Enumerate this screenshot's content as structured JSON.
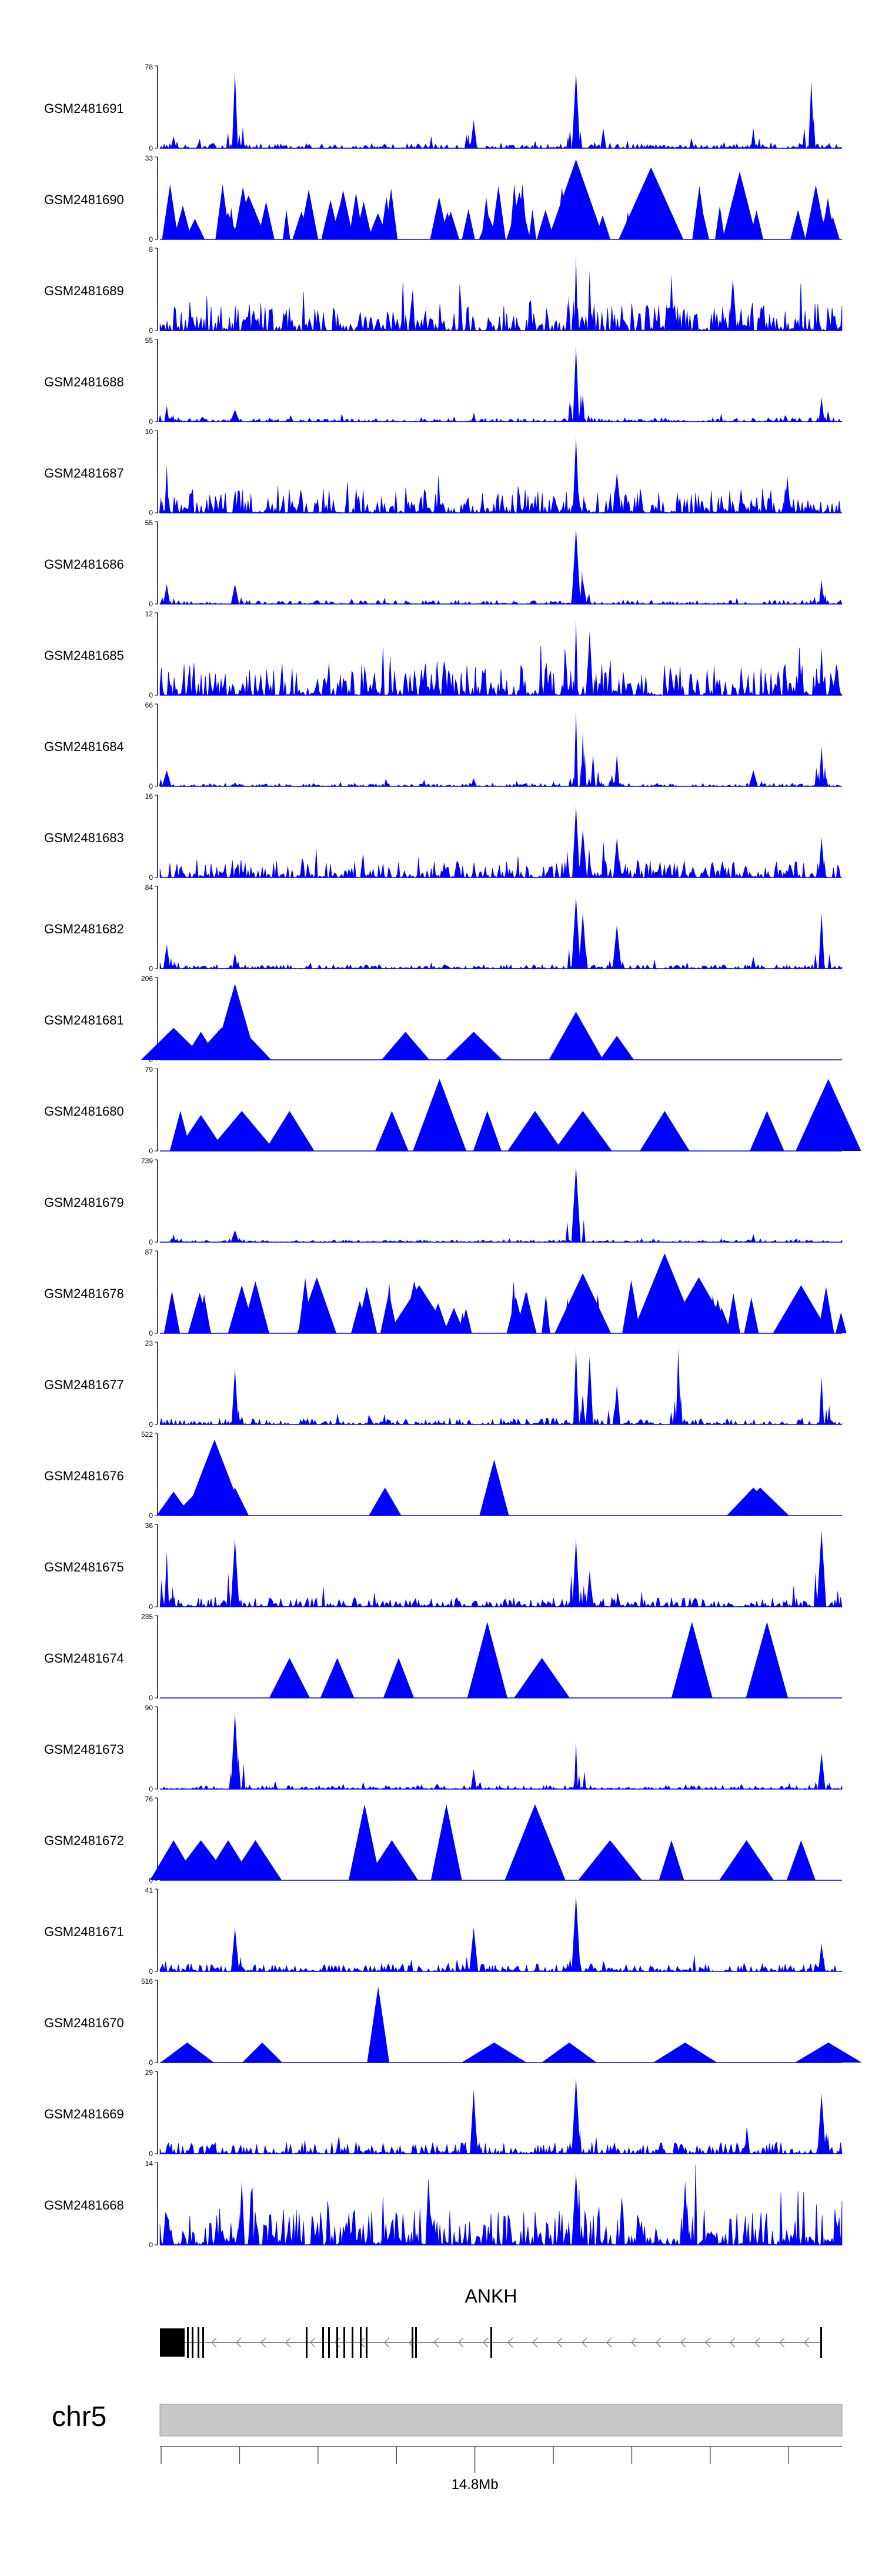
{
  "chart_data": {
    "type": "area",
    "title": "",
    "tracks": [
      {
        "name": "GSM2481691",
        "ymax": "78",
        "pattern": "spiky",
        "peaks": [
          [
            0.02,
            0.15
          ],
          [
            0.11,
            0.95
          ],
          [
            0.46,
            0.35
          ],
          [
            0.61,
            0.95
          ],
          [
            0.65,
            0.25
          ],
          [
            0.87,
            0.25
          ],
          [
            0.955,
            0.85
          ]
        ],
        "noise": 0.06
      },
      {
        "name": "GSM2481690",
        "ymax": "33",
        "pattern": "triangles",
        "peaks": [
          [
            0.13,
            0.55
          ],
          [
            0.61,
            1.0
          ],
          [
            0.72,
            0.9
          ],
          [
            0.85,
            0.85
          ]
        ],
        "noise": 0.45
      },
      {
        "name": "GSM2481689",
        "ymax": "8",
        "pattern": "spiky",
        "peaks": [
          [
            0.61,
            0.95
          ],
          [
            0.63,
            0.75
          ],
          [
            0.75,
            0.7
          ],
          [
            0.84,
            0.65
          ]
        ],
        "noise": 0.35
      },
      {
        "name": "GSM2481688",
        "ymax": "55",
        "pattern": "spiky",
        "peaks": [
          [
            0.01,
            0.2
          ],
          [
            0.11,
            0.15
          ],
          [
            0.61,
            0.95
          ],
          [
            0.62,
            0.35
          ],
          [
            0.97,
            0.3
          ]
        ],
        "noise": 0.05
      },
      {
        "name": "GSM2481687",
        "ymax": "10",
        "pattern": "spiky",
        "peaks": [
          [
            0.61,
            0.95
          ],
          [
            0.01,
            0.6
          ],
          [
            0.67,
            0.5
          ],
          [
            0.92,
            0.45
          ]
        ],
        "noise": 0.3
      },
      {
        "name": "GSM2481686",
        "ymax": "55",
        "pattern": "spiky",
        "peaks": [
          [
            0.01,
            0.25
          ],
          [
            0.11,
            0.25
          ],
          [
            0.61,
            0.95
          ],
          [
            0.62,
            0.3
          ],
          [
            0.97,
            0.3
          ]
        ],
        "noise": 0.05
      },
      {
        "name": "GSM2481685",
        "ymax": "12",
        "pattern": "spiky",
        "peaks": [
          [
            0.61,
            0.95
          ],
          [
            0.63,
            0.8
          ],
          [
            0.97,
            0.6
          ]
        ],
        "noise": 0.4
      },
      {
        "name": "GSM2481684",
        "ymax": "66",
        "pattern": "spiky",
        "peaks": [
          [
            0.01,
            0.2
          ],
          [
            0.11,
            0.05
          ],
          [
            0.46,
            0.1
          ],
          [
            0.61,
            0.95
          ],
          [
            0.62,
            0.7
          ],
          [
            0.635,
            0.4
          ],
          [
            0.67,
            0.4
          ],
          [
            0.87,
            0.2
          ],
          [
            0.97,
            0.5
          ]
        ],
        "noise": 0.04
      },
      {
        "name": "GSM2481683",
        "ymax": "16",
        "pattern": "spiky",
        "peaks": [
          [
            0.61,
            0.9
          ],
          [
            0.62,
            0.6
          ],
          [
            0.67,
            0.5
          ],
          [
            0.97,
            0.5
          ]
        ],
        "noise": 0.22
      },
      {
        "name": "GSM2481682",
        "ymax": "84",
        "pattern": "spiky",
        "peaks": [
          [
            0.01,
            0.3
          ],
          [
            0.11,
            0.2
          ],
          [
            0.61,
            0.9
          ],
          [
            0.62,
            0.7
          ],
          [
            0.67,
            0.55
          ],
          [
            0.87,
            0.15
          ],
          [
            0.97,
            0.7
          ]
        ],
        "noise": 0.05
      },
      {
        "name": "GSM2481681",
        "ymax": "206",
        "pattern": "triangles",
        "peaks": [
          [
            0.02,
            0.4
          ],
          [
            0.06,
            0.35
          ],
          [
            0.09,
            0.4
          ],
          [
            0.11,
            0.95
          ],
          [
            0.13,
            0.3
          ],
          [
            0.36,
            0.35
          ],
          [
            0.46,
            0.35
          ],
          [
            0.61,
            0.6
          ],
          [
            0.67,
            0.3
          ]
        ],
        "noise": 0.0
      },
      {
        "name": "GSM2481680",
        "ymax": "79",
        "pattern": "triangles",
        "peaks": [
          [
            0.03,
            0.5
          ],
          [
            0.06,
            0.45
          ],
          [
            0.12,
            0.5
          ],
          [
            0.19,
            0.5
          ],
          [
            0.34,
            0.5
          ],
          [
            0.41,
            0.9
          ],
          [
            0.48,
            0.5
          ],
          [
            0.55,
            0.5
          ],
          [
            0.62,
            0.5
          ],
          [
            0.74,
            0.5
          ],
          [
            0.89,
            0.5
          ],
          [
            0.98,
            0.9
          ]
        ],
        "noise": 0.0
      },
      {
        "name": "GSM2481679",
        "ymax": "739",
        "pattern": "spiky",
        "peaks": [
          [
            0.61,
            0.95
          ],
          [
            0.02,
            0.1
          ],
          [
            0.11,
            0.15
          ],
          [
            0.87,
            0.1
          ]
        ],
        "noise": 0.03
      },
      {
        "name": "GSM2481678",
        "ymax": "87",
        "pattern": "triangles",
        "peaks": [
          [
            0.12,
            0.6
          ],
          [
            0.14,
            0.65
          ],
          [
            0.23,
            0.7
          ],
          [
            0.38,
            0.6
          ],
          [
            0.62,
            0.75
          ],
          [
            0.74,
            1.0
          ],
          [
            0.79,
            0.7
          ],
          [
            0.94,
            0.6
          ]
        ],
        "noise": 0.3
      },
      {
        "name": "GSM2481677",
        "ymax": "23",
        "pattern": "spiky",
        "peaks": [
          [
            0.11,
            0.7
          ],
          [
            0.61,
            0.95
          ],
          [
            0.63,
            0.85
          ],
          [
            0.67,
            0.5
          ],
          [
            0.76,
            0.95
          ],
          [
            0.97,
            0.6
          ]
        ],
        "noise": 0.08
      },
      {
        "name": "GSM2481676",
        "ymax": "522",
        "pattern": "triangles",
        "peaks": [
          [
            0.02,
            0.3
          ],
          [
            0.06,
            0.35
          ],
          [
            0.08,
            0.95
          ],
          [
            0.11,
            0.35
          ],
          [
            0.33,
            0.35
          ],
          [
            0.49,
            0.7
          ],
          [
            0.87,
            0.35
          ],
          [
            0.88,
            0.35
          ]
        ],
        "noise": 0.0
      },
      {
        "name": "GSM2481675",
        "ymax": "36",
        "pattern": "spiky",
        "peaks": [
          [
            0.01,
            0.7
          ],
          [
            0.11,
            0.85
          ],
          [
            0.61,
            0.85
          ],
          [
            0.63,
            0.45
          ],
          [
            0.97,
            0.95
          ]
        ],
        "noise": 0.12
      },
      {
        "name": "GSM2481674",
        "ymax": "235",
        "pattern": "triangles",
        "peaks": [
          [
            0.19,
            0.5
          ],
          [
            0.26,
            0.5
          ],
          [
            0.35,
            0.5
          ],
          [
            0.48,
            0.95
          ],
          [
            0.56,
            0.5
          ],
          [
            0.78,
            0.95
          ],
          [
            0.89,
            0.95
          ]
        ],
        "noise": 0.0
      },
      {
        "name": "GSM2481673",
        "ymax": "90",
        "pattern": "spiky",
        "peaks": [
          [
            0.11,
            0.95
          ],
          [
            0.46,
            0.25
          ],
          [
            0.61,
            0.6
          ],
          [
            0.97,
            0.45
          ]
        ],
        "noise": 0.05
      },
      {
        "name": "GSM2481672",
        "ymax": "76",
        "pattern": "triangles",
        "peaks": [
          [
            0.02,
            0.5
          ],
          [
            0.06,
            0.5
          ],
          [
            0.1,
            0.5
          ],
          [
            0.14,
            0.5
          ],
          [
            0.3,
            0.95
          ],
          [
            0.34,
            0.5
          ],
          [
            0.42,
            0.95
          ],
          [
            0.55,
            0.95
          ],
          [
            0.66,
            0.5
          ],
          [
            0.75,
            0.5
          ],
          [
            0.86,
            0.5
          ],
          [
            0.94,
            0.5
          ]
        ],
        "noise": 0.0
      },
      {
        "name": "GSM2481671",
        "ymax": "41",
        "pattern": "spiky",
        "peaks": [
          [
            0.11,
            0.55
          ],
          [
            0.46,
            0.55
          ],
          [
            0.61,
            0.95
          ],
          [
            0.97,
            0.35
          ]
        ],
        "noise": 0.1
      },
      {
        "name": "GSM2481670",
        "ymax": "516",
        "pattern": "triangles",
        "peaks": [
          [
            0.04,
            0.25
          ],
          [
            0.15,
            0.25
          ],
          [
            0.32,
            0.95
          ],
          [
            0.49,
            0.25
          ],
          [
            0.6,
            0.25
          ],
          [
            0.77,
            0.25
          ],
          [
            0.98,
            0.25
          ]
        ],
        "noise": 0.0
      },
      {
        "name": "GSM2481669",
        "ymax": "29",
        "pattern": "spiky",
        "peaks": [
          [
            0.46,
            0.8
          ],
          [
            0.61,
            0.95
          ],
          [
            0.97,
            0.75
          ]
        ],
        "noise": 0.15
      },
      {
        "name": "GSM2481668",
        "ymax": "14",
        "pattern": "spiky",
        "peaks": [
          [
            0.61,
            0.9
          ],
          [
            0.12,
            0.8
          ],
          [
            0.77,
            0.8
          ]
        ],
        "noise": 0.45
      }
    ],
    "gene": {
      "name": "ANKH",
      "strand": "-"
    },
    "chromosome": "chr5",
    "tick_label": "14.8Mb",
    "tick_count": 9,
    "tick_label_index": 4,
    "colors": {
      "signal": "#0000ff",
      "ideogram": "#c8c8c8",
      "text": "#000000"
    }
  }
}
